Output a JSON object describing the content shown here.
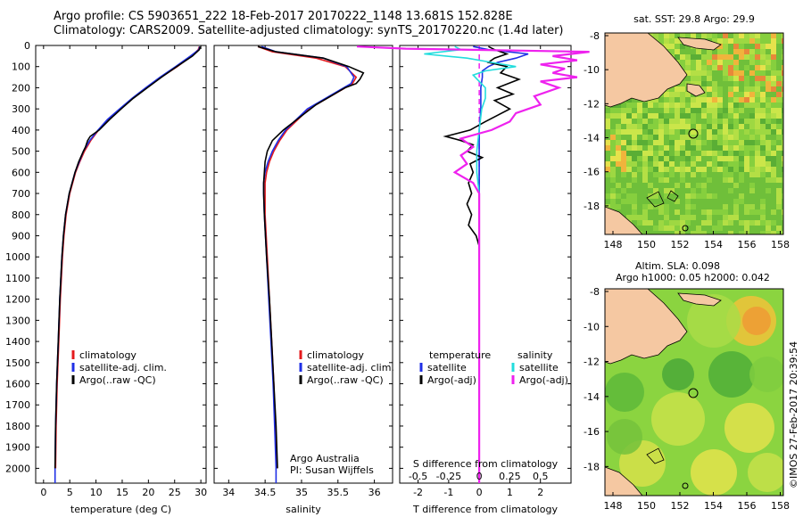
{
  "header": {
    "line1": "Argo profile: CS 5903651_222 18-Feb-2017 20170222_1148 13.681S 152.828E",
    "line2": "Climatology: CARS2009. Satellite-adjusted climatology: synTS_20170220.nc (1.4d later)"
  },
  "colors": {
    "climatology": "#e41a1c",
    "satellite": "#1f2fe6",
    "argo": "#000000",
    "argo_adj": "#ee22ee",
    "satellite_salinity": "#22dddd",
    "land": "#f5c8a2"
  },
  "depth_axis": {
    "ticks": [
      0,
      100,
      200,
      300,
      400,
      500,
      600,
      700,
      800,
      900,
      1000,
      1100,
      1200,
      1300,
      1400,
      1500,
      1600,
      1700,
      1800,
      1900,
      2000
    ],
    "ylim": [
      0,
      2070
    ]
  },
  "chart_data": [
    {
      "type": "line",
      "id": "temperature",
      "xlabel": "temperature (deg C)",
      "xlim": [
        -1.5,
        31
      ],
      "xticks": [
        0,
        5,
        10,
        15,
        20,
        25,
        30
      ],
      "ylim": [
        0,
        2070
      ],
      "legend": [
        "climatology",
        "satellite-adj. clim.",
        "Argo(..raw -QC)"
      ],
      "series": [
        {
          "name": "climatology",
          "color": "#e41a1c",
          "depth": [
            5,
            20,
            50,
            100,
            150,
            200,
            250,
            300,
            350,
            400,
            450,
            500,
            550,
            600,
            700,
            800,
            900,
            1000,
            1200,
            1400,
            1600,
            1800,
            2000
          ],
          "values": [
            29.7,
            29.5,
            28.2,
            25.5,
            22.4,
            19.6,
            17.0,
            14.6,
            12.3,
            10.5,
            9.0,
            7.8,
            6.9,
            6.1,
            5.0,
            4.3,
            3.9,
            3.6,
            3.2,
            2.9,
            2.6,
            2.4,
            2.3
          ]
        },
        {
          "name": "satellite-adj. clim.",
          "color": "#1f2fe6",
          "depth": [
            5,
            20,
            50,
            100,
            150,
            200,
            250,
            300,
            350,
            400,
            450,
            500,
            550,
            600,
            700,
            800,
            900,
            1000,
            1200,
            1400,
            1600,
            1800,
            2000,
            2070
          ],
          "values": [
            29.8,
            29.6,
            28.0,
            25.2,
            22.2,
            19.5,
            16.9,
            14.5,
            12.2,
            10.4,
            8.8,
            7.6,
            6.8,
            6.0,
            4.9,
            4.2,
            3.8,
            3.5,
            3.1,
            2.8,
            2.5,
            2.3,
            2.2,
            2.2
          ]
        },
        {
          "name": "Argo(..raw -QC)",
          "color": "#000000",
          "depth": [
            5,
            20,
            50,
            100,
            150,
            200,
            250,
            300,
            350,
            400,
            430,
            450,
            480,
            500,
            550,
            600,
            700,
            800,
            900,
            1000,
            1200,
            1400,
            1600,
            1800,
            2000
          ],
          "values": [
            29.9,
            29.7,
            28.4,
            25.4,
            22.5,
            19.8,
            17.1,
            14.8,
            12.6,
            10.6,
            8.9,
            8.4,
            8.0,
            7.6,
            6.7,
            6.0,
            4.9,
            4.2,
            3.8,
            3.5,
            3.1,
            2.8,
            2.5,
            2.3,
            2.2
          ]
        }
      ]
    },
    {
      "type": "line",
      "id": "salinity",
      "xlabel": "salinity",
      "xlim": [
        33.8,
        36.25
      ],
      "xticks": [
        34,
        34.5,
        35,
        35.5,
        36
      ],
      "ylim": [
        0,
        2070
      ],
      "legend": [
        "climatology",
        "satellite-adj. clim.",
        "Argo(..raw -QC)"
      ],
      "annotation": [
        "Argo Australia",
        "PI: Susan Wijffels"
      ],
      "series": [
        {
          "name": "climatology",
          "color": "#e41a1c",
          "depth": [
            5,
            30,
            60,
            100,
            150,
            180,
            220,
            260,
            300,
            350,
            400,
            450,
            500,
            550,
            600,
            650,
            700,
            800,
            1000,
            1200,
            1400,
            1600,
            1800,
            2000
          ],
          "values": [
            34.4,
            34.6,
            35.2,
            35.6,
            35.75,
            35.7,
            35.5,
            35.3,
            35.1,
            34.95,
            34.8,
            34.7,
            34.62,
            34.56,
            34.52,
            34.5,
            34.5,
            34.5,
            34.53,
            34.56,
            34.59,
            34.62,
            34.64,
            34.66
          ]
        },
        {
          "name": "satellite-adj. clim.",
          "color": "#1f2fe6",
          "depth": [
            5,
            30,
            60,
            100,
            150,
            180,
            220,
            260,
            300,
            350,
            400,
            450,
            500,
            550,
            600,
            650,
            700,
            800,
            1000,
            1200,
            1400,
            1600,
            1800,
            2000,
            2070
          ],
          "values": [
            34.45,
            34.65,
            35.3,
            35.62,
            35.72,
            35.68,
            35.48,
            35.28,
            35.08,
            34.93,
            34.78,
            34.68,
            34.6,
            34.54,
            34.5,
            34.48,
            34.48,
            34.49,
            34.52,
            34.55,
            34.58,
            34.61,
            34.63,
            34.65,
            34.65
          ]
        },
        {
          "name": "Argo(..raw -QC)",
          "color": "#000000",
          "depth": [
            5,
            30,
            60,
            100,
            130,
            160,
            180,
            200,
            240,
            280,
            320,
            360,
            400,
            450,
            500,
            550,
            600,
            650,
            700,
            800,
            1000,
            1200,
            1400,
            1600,
            1800,
            2000
          ],
          "values": [
            34.4,
            34.65,
            35.3,
            35.65,
            35.85,
            35.8,
            35.75,
            35.6,
            35.4,
            35.2,
            35.05,
            34.9,
            34.75,
            34.6,
            34.53,
            34.5,
            34.49,
            34.48,
            34.48,
            34.49,
            34.52,
            34.56,
            34.59,
            34.62,
            34.65,
            34.67
          ]
        }
      ]
    },
    {
      "type": "line",
      "id": "differences",
      "xlabel": "T difference from climatology",
      "xlabel_top": "S difference from climatology",
      "xlim": [
        -2.6,
        3.0
      ],
      "xticks": [
        -2,
        -1,
        0,
        1,
        2
      ],
      "xticks_s": [
        "-0.5",
        "-0.25",
        "0",
        "0.25",
        "0.5"
      ],
      "ylim": [
        0,
        2070
      ],
      "legend_temperature": [
        "temperature",
        "satellite",
        "Argo(-adj)"
      ],
      "legend_salinity": [
        "salinity",
        "satellite",
        "Argo(-adj)"
      ],
      "series": [
        {
          "name": "temperature satellite",
          "color": "#1f2fe6",
          "depth": [
            5,
            20,
            40,
            60,
            80,
            100,
            120,
            150,
            200,
            300,
            400,
            500,
            600,
            800,
            1000,
            1500,
            2000
          ],
          "values": [
            -0.2,
            0.3,
            1.6,
            1.2,
            0.6,
            0.3,
            0.1,
            0.1,
            0.05,
            0.05,
            0.0,
            0.0,
            0.0,
            0.0,
            0.0,
            0.0,
            0.0
          ]
        },
        {
          "name": "temperature Argo(-adj)",
          "color": "#000000",
          "depth": [
            5,
            20,
            40,
            60,
            80,
            100,
            130,
            160,
            200,
            230,
            260,
            300,
            330,
            360,
            400,
            430,
            450,
            470,
            500,
            530,
            560,
            600,
            650,
            700,
            750,
            800,
            850,
            900,
            950
          ],
          "values": [
            0.3,
            0.5,
            0.9,
            0.5,
            0.3,
            0.9,
            0.7,
            1.3,
            0.6,
            1.1,
            0.5,
            1.0,
            0.6,
            0.2,
            -0.3,
            -1.1,
            -0.6,
            -0.2,
            -0.4,
            0.1,
            -0.3,
            -0.2,
            -0.35,
            -0.25,
            -0.4,
            -0.25,
            -0.35,
            -0.1,
            0.0
          ]
        },
        {
          "name": "salinity satellite",
          "color": "#22dddd",
          "depth": [
            5,
            20,
            40,
            60,
            80,
            100,
            120,
            140,
            170,
            200,
            250,
            300,
            400,
            500,
            600,
            700,
            800,
            1000,
            1500,
            2000
          ],
          "values": [
            -0.2,
            -0.15,
            -0.45,
            -0.1,
            0.1,
            0.3,
            0.05,
            -0.05,
            0.0,
            0.05,
            0.05,
            0.02,
            0.0,
            -0.02,
            -0.02,
            0.0,
            0.0,
            0.0,
            0.0,
            0.0
          ]
        },
        {
          "name": "salinity Argo(-adj)",
          "color": "#ee22ee",
          "depth": [
            5,
            15,
            30,
            50,
            70,
            90,
            110,
            130,
            150,
            170,
            200,
            240,
            280,
            320,
            360,
            400,
            440,
            480,
            520,
            560,
            600,
            650,
            700,
            800,
            900,
            1000,
            1500,
            2000,
            2070
          ],
          "values": [
            -1.0,
            -0.6,
            0.9,
            0.6,
            0.8,
            0.5,
            0.7,
            0.6,
            0.8,
            0.5,
            0.65,
            0.45,
            0.5,
            0.3,
            0.25,
            0.1,
            -0.15,
            -0.05,
            -0.15,
            -0.1,
            -0.2,
            -0.05,
            0.0,
            0.0,
            0.0,
            0.0,
            0.0,
            0.0,
            0.0
          ]
        }
      ]
    }
  ],
  "map_sst": {
    "title": "sat. SST: 29.8  Argo: 29.9",
    "lon_ticks": [
      "148",
      "150",
      "152",
      "154",
      "156",
      "158"
    ],
    "lat_ticks": [
      "-8",
      "-10",
      "-12",
      "-14",
      "-16",
      "-18"
    ]
  },
  "map_sla": {
    "title1": "Altim. SLA: 0.098",
    "title2": "Argo h1000: 0.05  h2000: 0.042",
    "lon_ticks": [
      "148",
      "150",
      "152",
      "154",
      "156",
      "158"
    ],
    "lat_ticks": [
      "-8",
      "-10",
      "-12",
      "-14",
      "-16",
      "-18"
    ]
  },
  "credit": "©IMOS 27-Feb-2017 20:39:54"
}
